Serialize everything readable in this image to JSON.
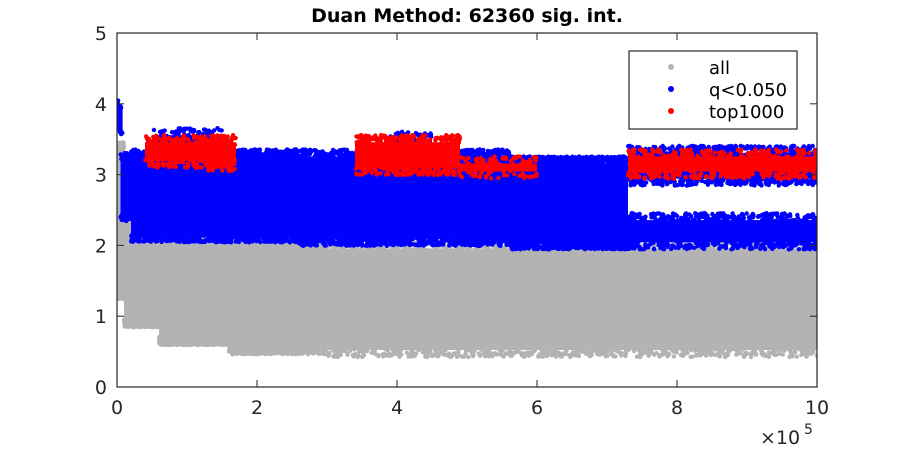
{
  "chart_data": {
    "type": "scatter",
    "title": "Duan Method: 62360 sig. int.",
    "xlabel": "",
    "ylabel": "",
    "xlim": [
      0,
      1000000
    ],
    "ylim": [
      0,
      5
    ],
    "x_ticks": [
      0,
      200000,
      400000,
      600000,
      800000,
      1000000
    ],
    "x_tick_labels": [
      "0",
      "2",
      "4",
      "6",
      "8",
      "10"
    ],
    "x_exponent_label": "×10",
    "x_exponent": "5",
    "y_ticks": [
      0,
      1,
      2,
      3,
      4,
      5
    ],
    "y_tick_labels": [
      "0",
      "1",
      "2",
      "3",
      "4",
      "5"
    ],
    "grid": false,
    "legend_position": "top-right",
    "series": [
      {
        "name": "all",
        "color": "#b3b3b3",
        "bands": [
          {
            "x": [
              0,
              10000
            ],
            "y": [
              1.3,
              3.4
            ]
          },
          {
            "x": [
              10000,
              60000
            ],
            "y": [
              0.9,
              2.5
            ]
          },
          {
            "x": [
              60000,
              160000
            ],
            "y": [
              0.65,
              2.25
            ]
          },
          {
            "x": [
              160000,
              300000
            ],
            "y": [
              0.52,
              2.1
            ]
          },
          {
            "x": [
              300000,
              1000000
            ],
            "y": [
              0.48,
              2.0
            ]
          }
        ]
      },
      {
        "name": "q<0.050",
        "color": "#0000ff",
        "bands": [
          {
            "x": [
              0,
              8000
            ],
            "y": [
              3.6,
              4.0
            ]
          },
          {
            "x": [
              5000,
              20000
            ],
            "y": [
              2.4,
              3.25
            ]
          },
          {
            "x": [
              20000,
              260000
            ],
            "y": [
              2.1,
              3.3
            ]
          },
          {
            "x": [
              260000,
              560000
            ],
            "y": [
              2.05,
              3.3
            ]
          },
          {
            "x": [
              560000,
              730000
            ],
            "y": [
              2.0,
              3.2
            ]
          },
          {
            "x": [
              730000,
              1000000
            ],
            "y": [
              2.0,
              2.4
            ]
          },
          {
            "x": [
              730000,
              1000000
            ],
            "y": [
              2.9,
              3.35
            ]
          },
          {
            "x": [
              50000,
              150000
            ],
            "y": [
              3.3,
              3.6
            ]
          },
          {
            "x": [
              390000,
              450000
            ],
            "y": [
              3.3,
              3.55
            ]
          }
        ]
      },
      {
        "name": "top1000",
        "color": "#ff0000",
        "bands": [
          {
            "x": [
              40000,
              170000
            ],
            "y": [
              3.15,
              3.5
            ]
          },
          {
            "x": [
              130000,
              170000
            ],
            "y": [
              3.1,
              3.45
            ]
          },
          {
            "x": [
              340000,
              490000
            ],
            "y": [
              3.05,
              3.5
            ]
          },
          {
            "x": [
              490000,
              600000
            ],
            "y": [
              3.0,
              3.2
            ]
          },
          {
            "x": [
              730000,
              1000000
            ],
            "y": [
              3.0,
              3.3
            ]
          }
        ]
      }
    ]
  }
}
